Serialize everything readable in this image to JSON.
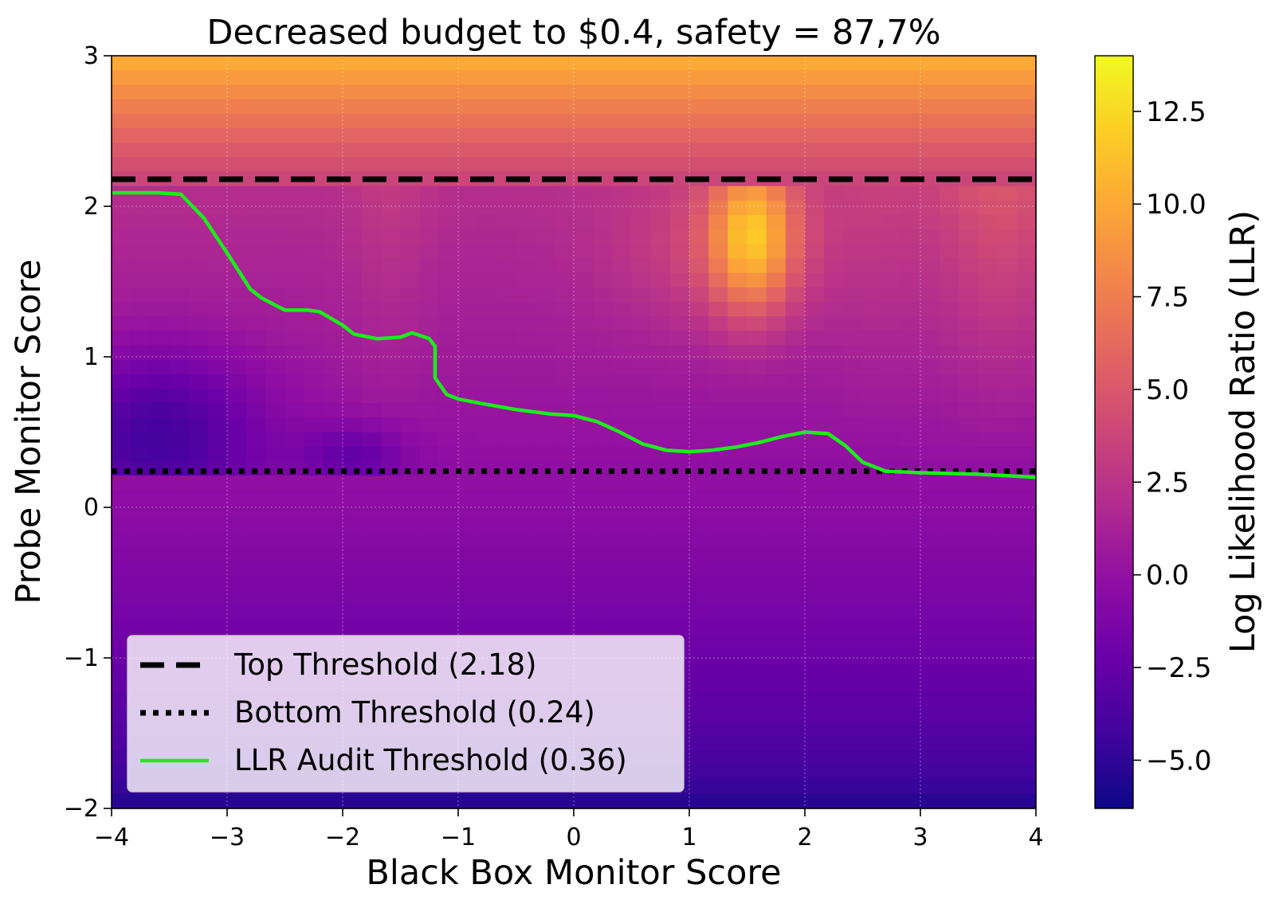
{
  "chart_data": {
    "type": "heatmap",
    "title": "Decreased budget to $0.4, safety = 87,7%",
    "xlabel": "Black Box Monitor Score",
    "ylabel": "Probe Monitor Score",
    "xlim": [
      -4,
      4
    ],
    "ylim": [
      -2,
      3
    ],
    "xticks": [
      -4,
      -3,
      -2,
      -1,
      0,
      1,
      2,
      3,
      4
    ],
    "xtick_labels": [
      "−4",
      "−3",
      "−2",
      "−1",
      "0",
      "1",
      "2",
      "3",
      "4"
    ],
    "yticks": [
      -2,
      -1,
      0,
      1,
      2,
      3
    ],
    "ytick_labels": [
      "−2",
      "−1",
      "0",
      "1",
      "2",
      "3"
    ],
    "grid": true,
    "colormap": "plasma",
    "colorbar": {
      "label": "Log Likelihood Ratio (LLR)",
      "range": [
        -6.3,
        14.0
      ],
      "ticks": [
        -5.0,
        -2.5,
        0.0,
        2.5,
        5.0,
        7.5,
        10.0,
        12.5
      ],
      "tick_labels": [
        "−5.0",
        "−2.5",
        "0.0",
        "2.5",
        "5.0",
        "7.5",
        "10.0",
        "12.5"
      ]
    },
    "thresholds": {
      "top": 2.18,
      "bottom": 0.24
    },
    "llr_audit_curve": {
      "x": [
        -4.0,
        -3.6,
        -3.4,
        -3.2,
        -3.0,
        -2.8,
        -2.7,
        -2.5,
        -2.3,
        -2.2,
        -2.0,
        -1.9,
        -1.7,
        -1.5,
        -1.4,
        -1.25,
        -1.2,
        -1.2,
        -1.1,
        -1.0,
        -0.8,
        -0.5,
        -0.2,
        0.0,
        0.2,
        0.4,
        0.6,
        0.8,
        1.0,
        1.2,
        1.4,
        1.6,
        1.8,
        2.0,
        2.2,
        2.35,
        2.5,
        2.7,
        3.0,
        3.5,
        4.0
      ],
      "y": [
        2.09,
        2.09,
        2.08,
        1.92,
        1.69,
        1.45,
        1.39,
        1.31,
        1.31,
        1.3,
        1.21,
        1.15,
        1.12,
        1.13,
        1.16,
        1.12,
        1.07,
        0.86,
        0.75,
        0.72,
        0.69,
        0.65,
        0.62,
        0.61,
        0.57,
        0.5,
        0.42,
        0.38,
        0.37,
        0.38,
        0.4,
        0.43,
        0.47,
        0.5,
        0.49,
        0.41,
        0.3,
        0.24,
        0.23,
        0.22,
        0.2
      ]
    },
    "legend": {
      "placement": "bottom-left",
      "entries": [
        {
          "label": "Top Threshold (2.18)",
          "style": "dashed",
          "color": "#000000"
        },
        {
          "label": "Bottom Threshold (0.24)",
          "style": "dotted",
          "color": "#000000"
        },
        {
          "label": "LLR Audit Threshold (0.36)",
          "style": "solid",
          "color": "#1aee1a"
        }
      ]
    },
    "hotspot": {
      "center": [
        1.55,
        1.8
      ],
      "peak_llr": 13.5
    }
  }
}
